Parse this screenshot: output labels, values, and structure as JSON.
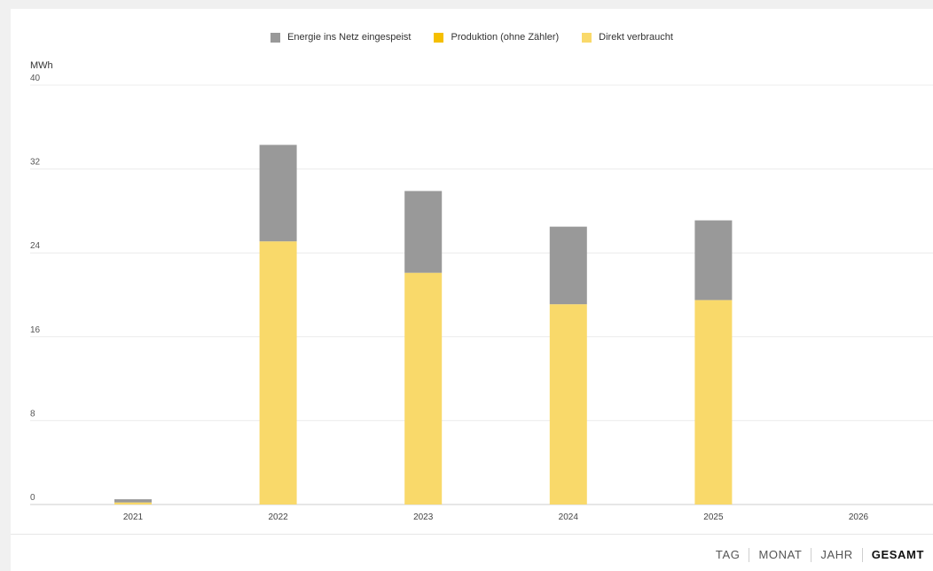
{
  "chart_data": {
    "type": "bar",
    "stacked": true,
    "unit_label": "MWh",
    "categories": [
      "2021",
      "2022",
      "2023",
      "2024",
      "2025",
      "2026"
    ],
    "series": [
      {
        "name": "Direkt verbraucht",
        "color": "#f9d96a",
        "values": [
          0.2,
          25.1,
          22.1,
          19.1,
          19.5,
          0
        ]
      },
      {
        "name": "Energie ins Netz eingespeist",
        "color": "#999999",
        "values": [
          0.3,
          9.2,
          7.8,
          7.4,
          7.6,
          0
        ]
      }
    ],
    "legend": [
      {
        "label": "Energie ins Netz eingespeist",
        "color": "#999999"
      },
      {
        "label": "Produktion (ohne Zähler)",
        "color": "#f5bf00"
      },
      {
        "label": "Direkt verbraucht",
        "color": "#f9d96a"
      }
    ],
    "ylim": [
      0,
      40
    ],
    "yticks": [
      0,
      8,
      16,
      24,
      32,
      40
    ],
    "grid": true,
    "legend_position": "top-center"
  },
  "range_selector": {
    "options": [
      "TAG",
      "MONAT",
      "JAHR",
      "GESAMT"
    ],
    "active": "GESAMT"
  }
}
